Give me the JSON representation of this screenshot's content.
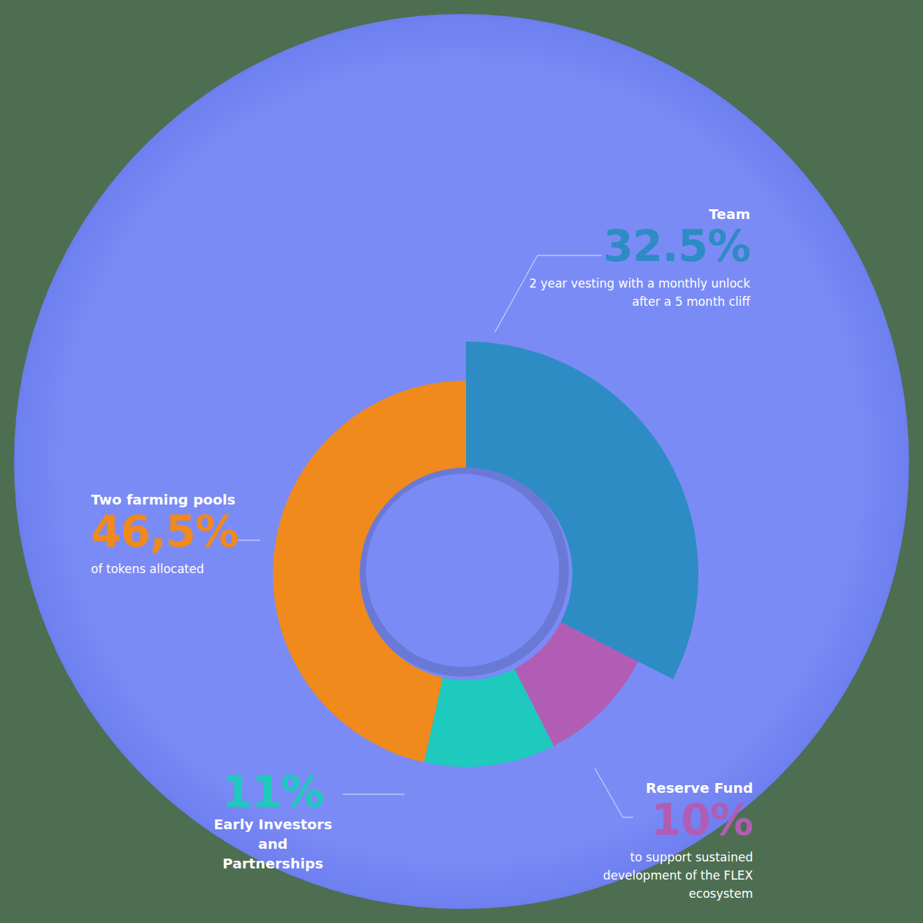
{
  "chart_data": {
    "type": "pie",
    "categories": [
      "Team",
      "Reserve Fund",
      "Early Investors and Partnerships",
      "Two farming pools"
    ],
    "values": [
      32.5,
      10,
      11,
      46.5
    ],
    "value_labels": [
      "32.5%",
      "10%",
      "11%",
      "46,5%"
    ],
    "descriptions": [
      "2 year vesting with a monthly unlock after a 5 month cliff",
      "to support sustained development of the FLEX ecosystem",
      null,
      "of tokens allocated"
    ],
    "colors": [
      "#2d8cc4",
      "#b25db5",
      "#1ec9bd",
      "#f08a1c"
    ],
    "data_labels": true
  }
}
